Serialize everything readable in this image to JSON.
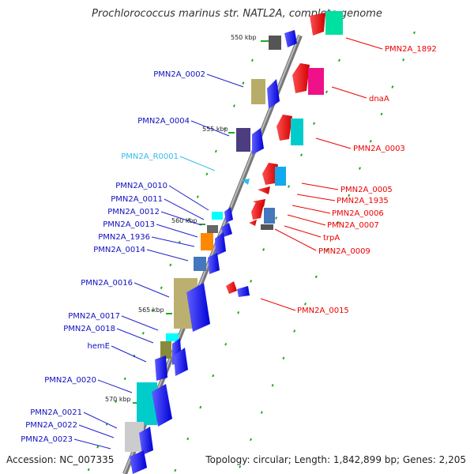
{
  "title": "Prochlorococcus marinus str. NATL2A, complete genome",
  "footer": {
    "accession": "Accession: NC_007335",
    "summary": "Topology: circular; Length: 1,842,899 bp; Genes: 2,205"
  },
  "scale_ticks": [
    {
      "label": "550 kbp",
      "kbp": 550
    },
    {
      "label": "555 kbp",
      "kbp": 555
    },
    {
      "label": "560 kbp",
      "kbp": 560
    },
    {
      "label": "565 kbp",
      "kbp": 565
    },
    {
      "label": "570 kbp",
      "kbp": 570
    }
  ],
  "colors": {
    "forward_label": "#1010c0",
    "reverse_label": "#ee0000",
    "rna_label": "#33bbee",
    "backbone": "#888888",
    "tick": "#22aa22",
    "gene_blue": "#0000ff",
    "gene_red": "#ff0000"
  },
  "forward_genes": [
    {
      "label": "PMN2A_0002"
    },
    {
      "label": "PMN2A_0004"
    },
    {
      "label": "PMN2A_R0001"
    },
    {
      "label": "PMN2A_0010"
    },
    {
      "label": "PMN2A_0011"
    },
    {
      "label": "PMN2A_0012"
    },
    {
      "label": "PMN2A_0013"
    },
    {
      "label": "PMN2A_1936"
    },
    {
      "label": "PMN2A_0014"
    },
    {
      "label": "PMN2A_0016"
    },
    {
      "label": "PMN2A_0017"
    },
    {
      "label": "PMN2A_0018"
    },
    {
      "label": "hemE"
    },
    {
      "label": "PMN2A_0020"
    },
    {
      "label": "PMN2A_0021"
    },
    {
      "label": "PMN2A_0022"
    },
    {
      "label": "PMN2A_0023"
    }
  ],
  "reverse_genes": [
    {
      "label": "PMN2A_1892"
    },
    {
      "label": "dnaA"
    },
    {
      "label": "PMN2A_0003"
    },
    {
      "label": "PMN2A_0005"
    },
    {
      "label": "PMN2A_1935"
    },
    {
      "label": "PMN2A_0006"
    },
    {
      "label": "PMN2A_0007"
    },
    {
      "label": "trpA"
    },
    {
      "label": "PMN2A_0009"
    },
    {
      "label": "PMN2A_0015"
    }
  ]
}
